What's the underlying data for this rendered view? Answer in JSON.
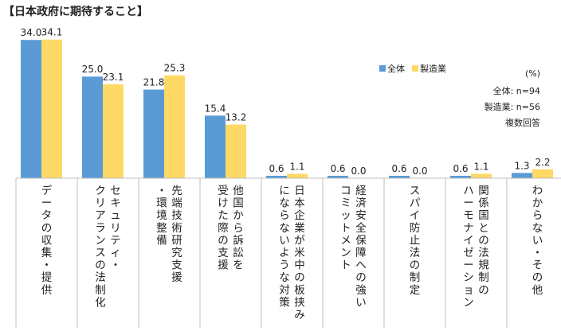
{
  "chart_data": {
    "type": "bar",
    "title": "【日本政府に期待すること】",
    "ylim": [
      0,
      36
    ],
    "grid": false,
    "legend_position": "top-right",
    "categories": [
      [
        "データの収集・提供"
      ],
      [
        "セキュリティ・",
        "クリアランスの法制化"
      ],
      [
        "先端技術研究支援",
        "・環境整備"
      ],
      [
        "他国から訴訟を",
        "受けた際の支援"
      ],
      [
        "日本企業が米中の板挟み",
        "にならないような対策"
      ],
      [
        "経済安全保障への強い",
        "コミットメント"
      ],
      [
        "スパイ防止法の制定"
      ],
      [
        "関係国との法規制の",
        "ハーモナイゼーション"
      ],
      [
        "わからない・その他"
      ]
    ],
    "series": [
      {
        "name": "全体",
        "color": "#5b9bd5",
        "values": [
          34.0,
          25.0,
          21.8,
          15.4,
          0.6,
          0.6,
          0.6,
          0.6,
          1.3
        ],
        "labels": [
          "34.0",
          "25.0",
          "21.8",
          "15.4",
          "0.6",
          "0.6",
          "0.6",
          "0.6",
          "1.3"
        ]
      },
      {
        "name": "製造業",
        "color": "#ffd966",
        "values": [
          34.1,
          23.1,
          25.3,
          13.2,
          1.1,
          0.0,
          0.0,
          1.1,
          2.2
        ],
        "labels": [
          "34.1",
          "23.1",
          "25.3",
          "13.2",
          "1.1",
          "0.0",
          "0.0",
          "1.1",
          "2.2"
        ]
      }
    ],
    "notes": [
      "(%)",
      "全体: n=94",
      "製造業: n=56",
      "複数回答"
    ]
  }
}
